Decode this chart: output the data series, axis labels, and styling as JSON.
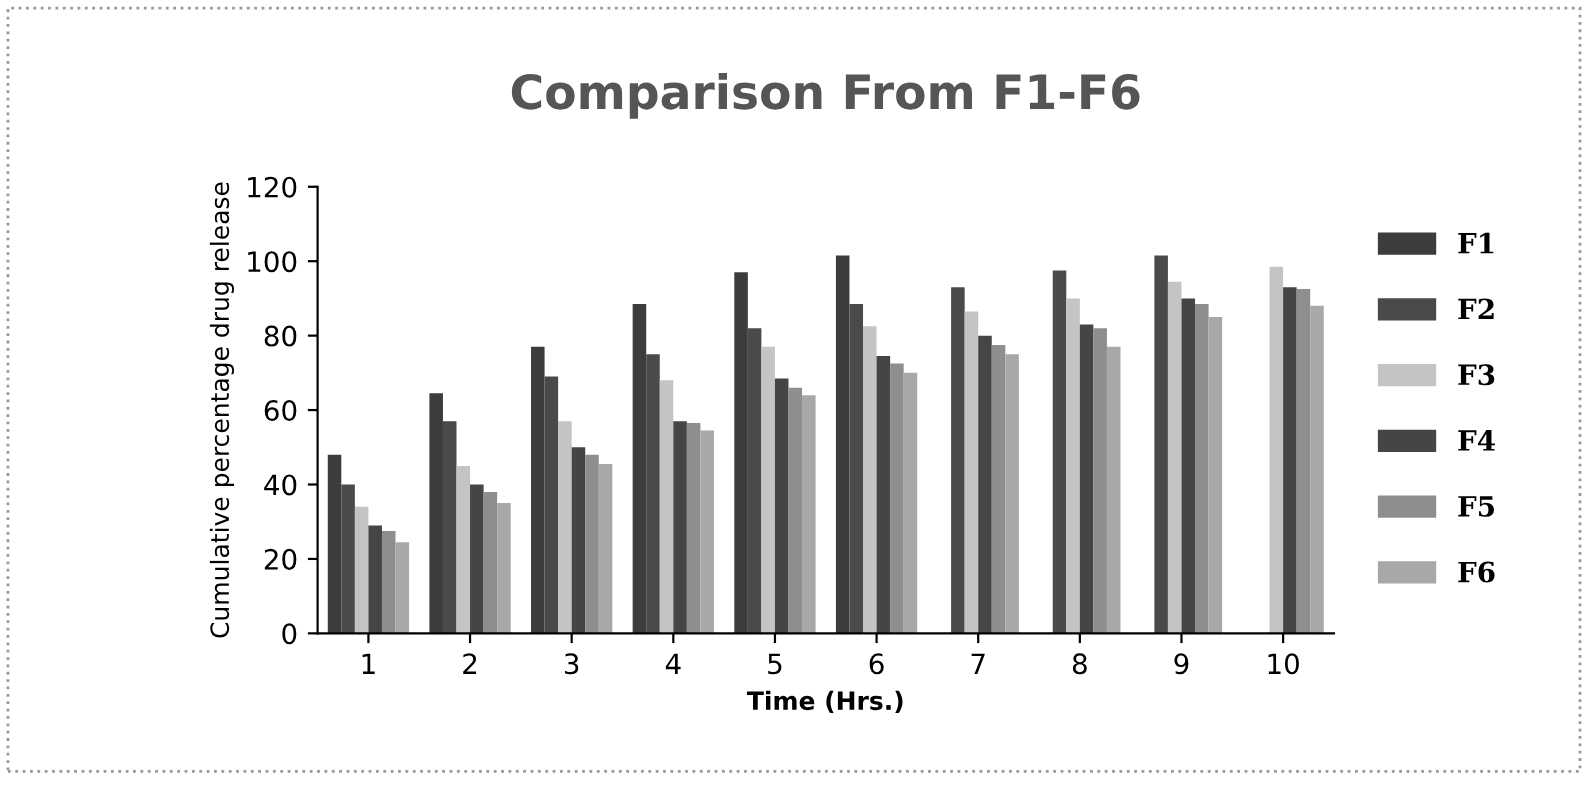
{
  "chart_data": {
    "type": "bar",
    "title": "Comparison From F1-F6",
    "xlabel": "Time (Hrs.)",
    "ylabel": "Cumulative percentage drug release",
    "categories": [
      "1",
      "2",
      "3",
      "4",
      "5",
      "6",
      "7",
      "8",
      "9",
      "10"
    ],
    "series": [
      {
        "name": "F1",
        "color": "#3c3c3c",
        "values": [
          48,
          64.5,
          77,
          88.5,
          97,
          101.5,
          null,
          null,
          null,
          null
        ]
      },
      {
        "name": "F2",
        "color": "#4a4a4a",
        "values": [
          40,
          57,
          69,
          75,
          82,
          88.5,
          93,
          97.5,
          101.5,
          null
        ]
      },
      {
        "name": "F3",
        "color": "#c4c4c4",
        "values": [
          34,
          45,
          57,
          68,
          77,
          82.5,
          86.5,
          90,
          94.5,
          98.5
        ]
      },
      {
        "name": "F4",
        "color": "#454545",
        "values": [
          29,
          40,
          50,
          57,
          68.5,
          74.5,
          80,
          83,
          90,
          93
        ]
      },
      {
        "name": "F5",
        "color": "#8e8e8e",
        "values": [
          27.5,
          38,
          48,
          56.5,
          66,
          72.5,
          77.5,
          82,
          88.5,
          92.5
        ]
      },
      {
        "name": "F6",
        "color": "#a8a8a8",
        "values": [
          24.5,
          35,
          45.5,
          54.5,
          64,
          70,
          75,
          77,
          85,
          88
        ]
      }
    ],
    "ylim": [
      0,
      120
    ],
    "yticks": [
      0,
      20,
      40,
      60,
      80,
      100,
      120
    ],
    "grid": false,
    "legend": "right"
  }
}
